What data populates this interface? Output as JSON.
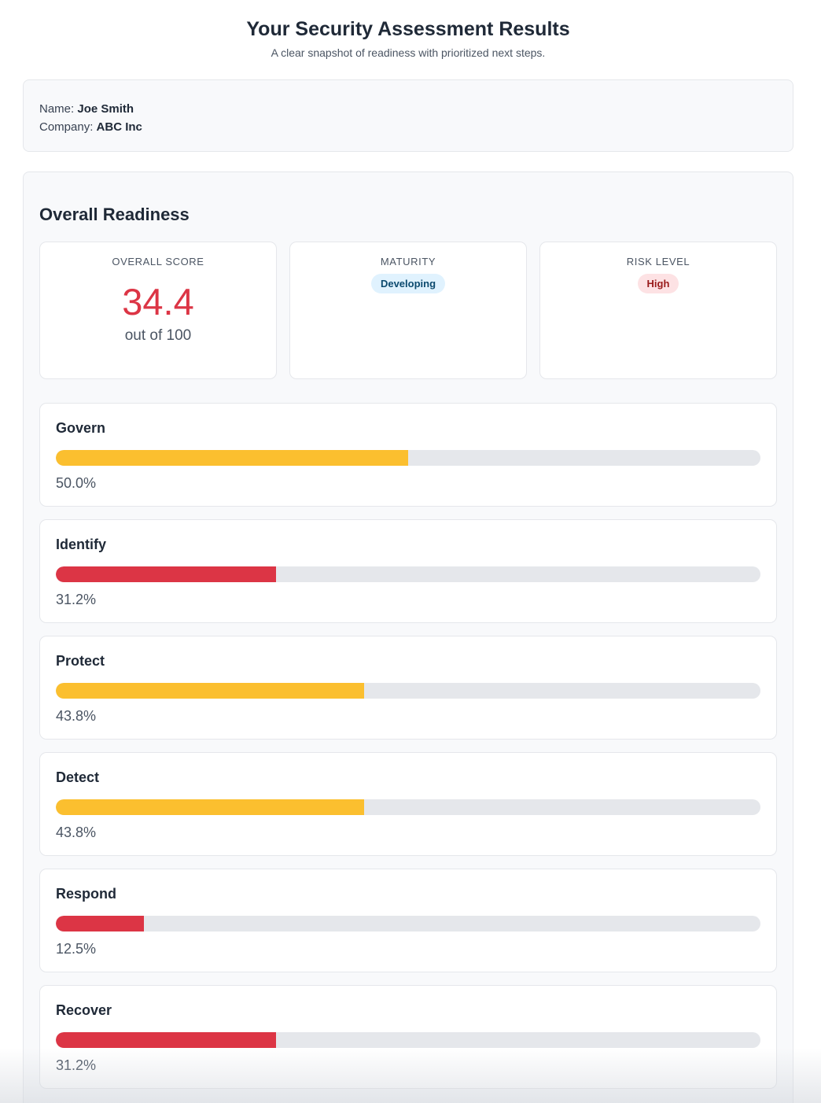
{
  "header": {
    "title": "Your Security Assessment Results",
    "subtitle": "A clear snapshot of readiness with prioritized next steps."
  },
  "info": {
    "name_label": "Name:",
    "name_value": "Joe Smith",
    "company_label": "Company:",
    "company_value": "ABC Inc"
  },
  "overview": {
    "title": "Overall Readiness",
    "score": {
      "label": "OVERALL SCORE",
      "value": "34.4",
      "sub": "out of 100"
    },
    "maturity": {
      "label": "MATURITY",
      "value": "Developing"
    },
    "risk": {
      "label": "RISK LEVEL",
      "value": "High"
    }
  },
  "colors": {
    "danger": "#dc3545",
    "warning": "#fbbf2f",
    "track": "#e5e7eb"
  },
  "functions": [
    {
      "name": "Govern",
      "percent": 50.0,
      "percent_label": "50.0%",
      "status": "warning"
    },
    {
      "name": "Identify",
      "percent": 31.2,
      "percent_label": "31.2%",
      "status": "danger"
    },
    {
      "name": "Protect",
      "percent": 43.8,
      "percent_label": "43.8%",
      "status": "warning"
    },
    {
      "name": "Detect",
      "percent": 43.8,
      "percent_label": "43.8%",
      "status": "warning"
    },
    {
      "name": "Respond",
      "percent": 12.5,
      "percent_label": "12.5%",
      "status": "danger"
    },
    {
      "name": "Recover",
      "percent": 31.2,
      "percent_label": "31.2%",
      "status": "danger"
    }
  ]
}
